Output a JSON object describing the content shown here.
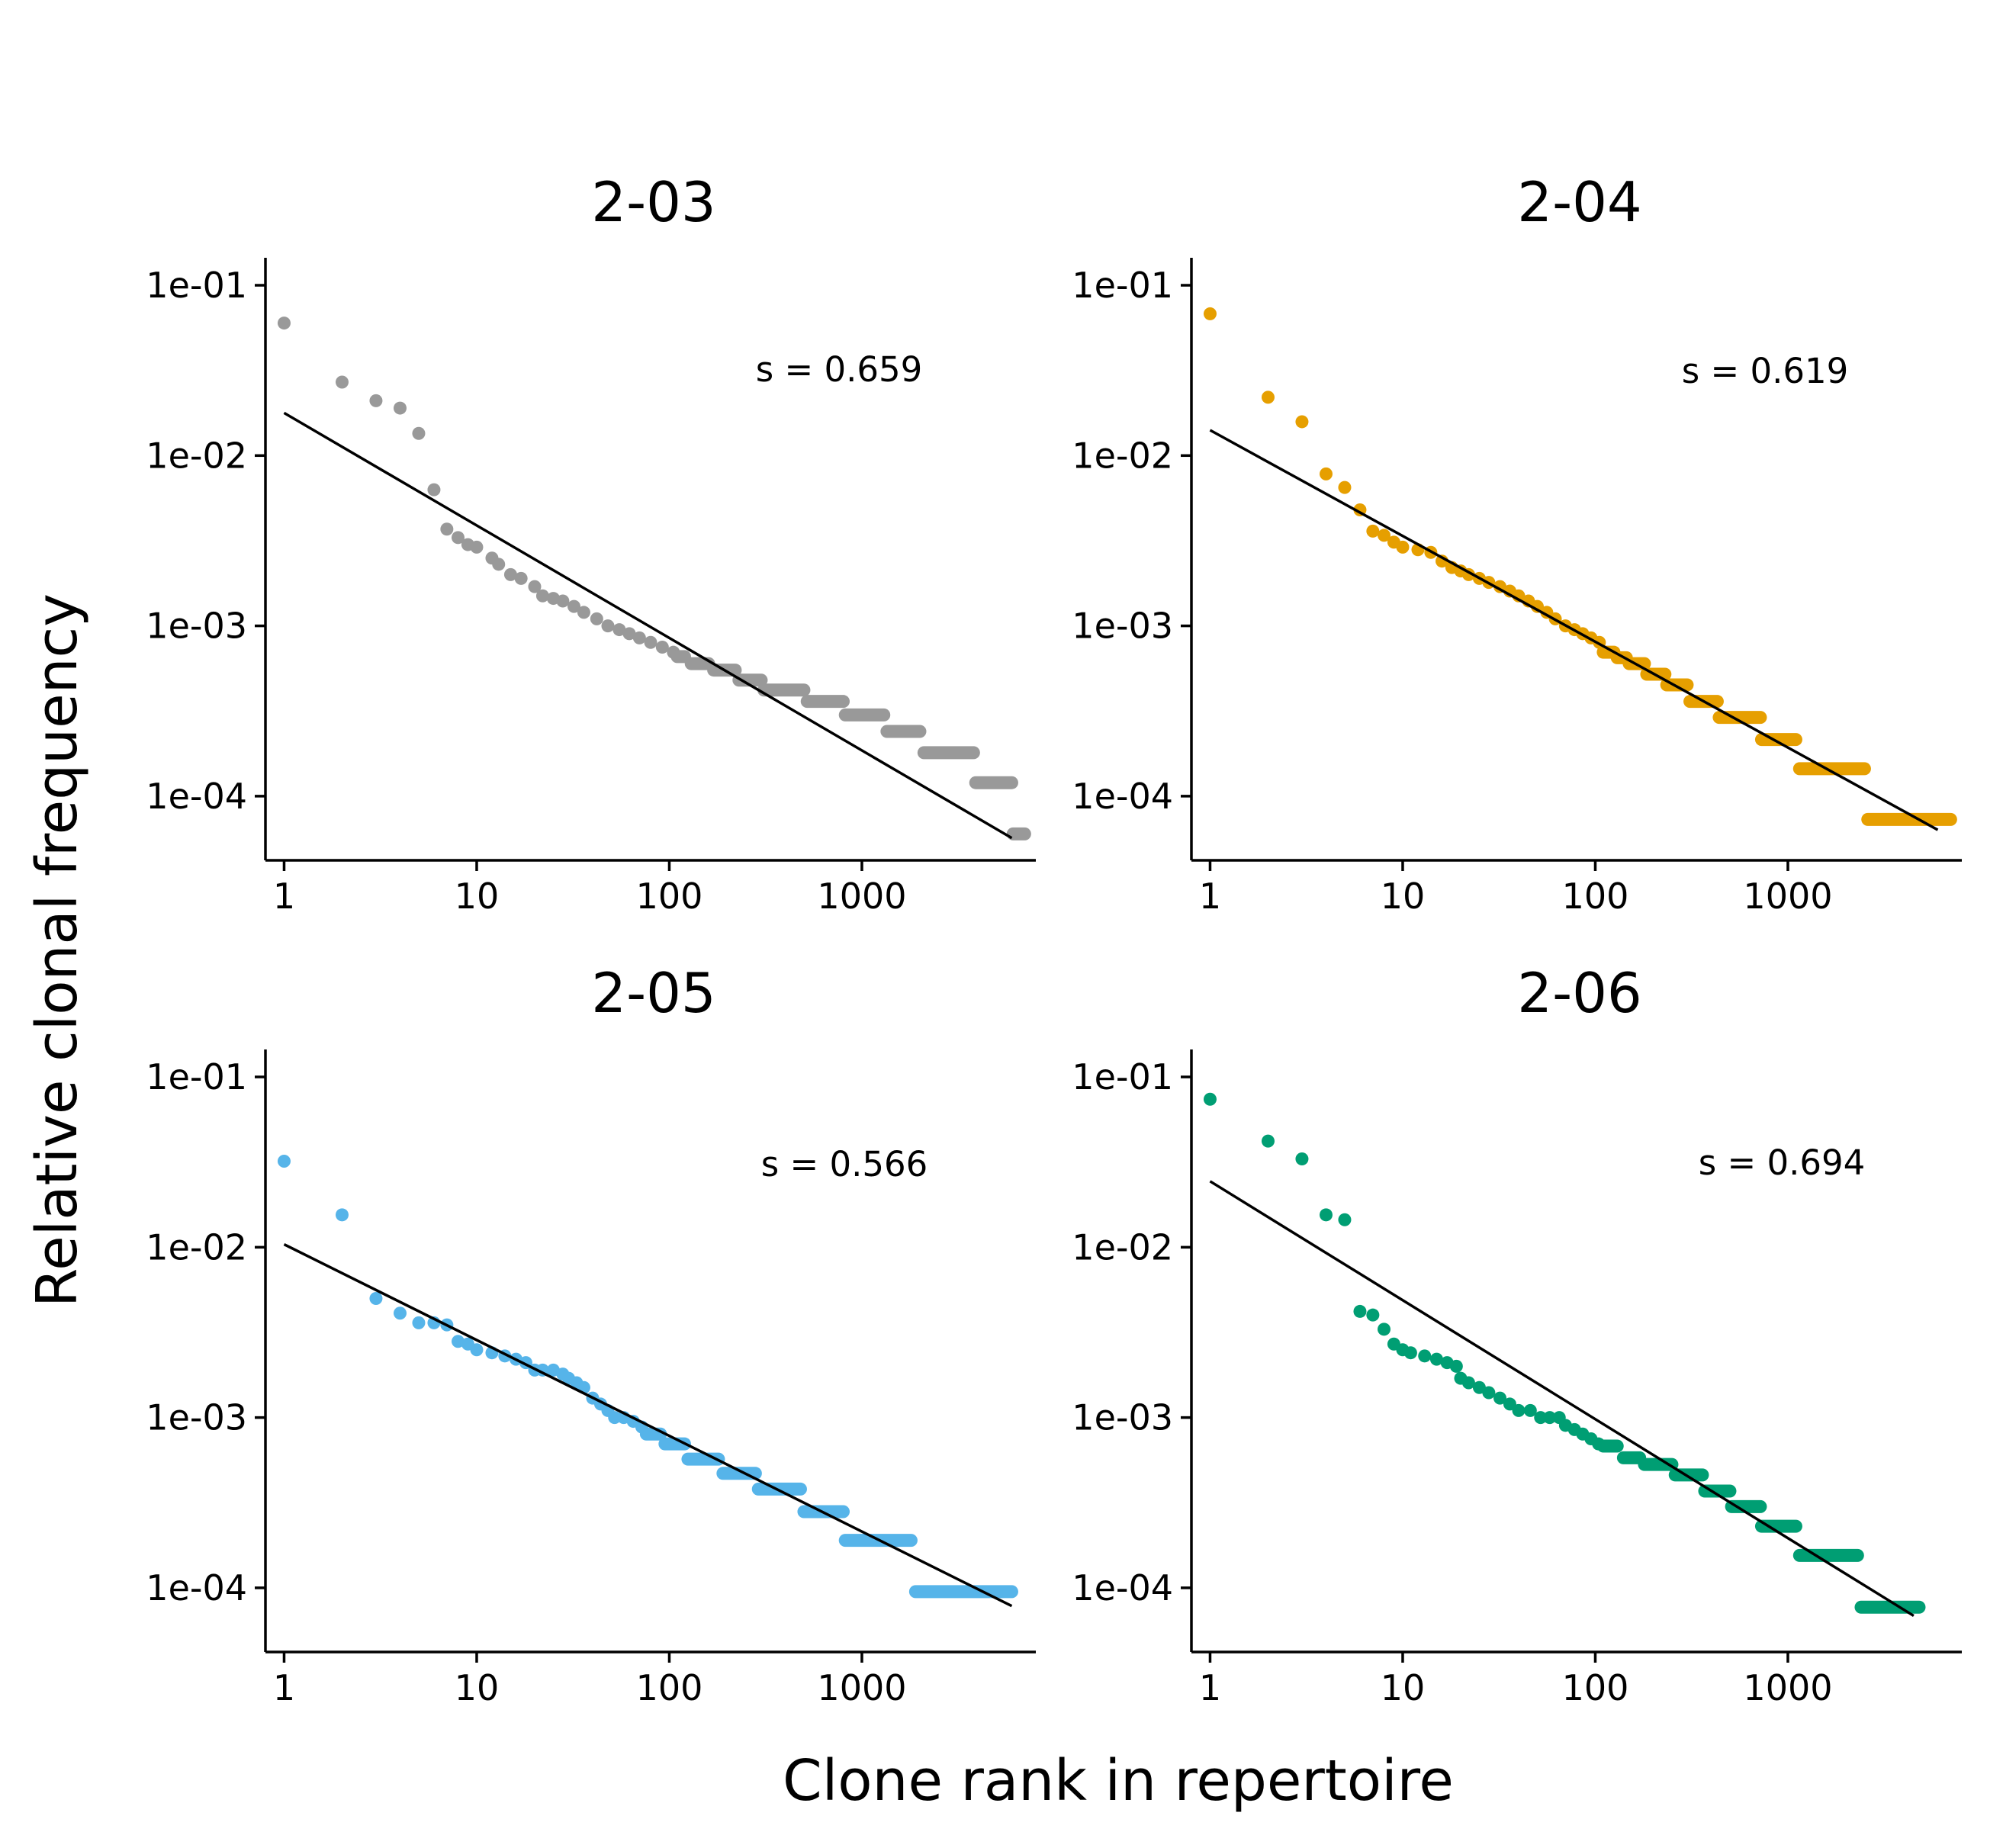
{
  "figure": {
    "xlabel": "Clone rank in repertoire",
    "ylabel": "Relative clonal frequency"
  },
  "chart_data": [
    {
      "type": "scatter",
      "title": "2-03",
      "x_scale": "log",
      "y_scale": "log",
      "xlim": [
        0.8,
        8000
      ],
      "ylim": [
        4.2e-05,
        0.145
      ],
      "x_ticks": [
        1,
        10,
        100,
        1000
      ],
      "x_tick_labels": [
        "1",
        "10",
        "100",
        "1000"
      ],
      "y_ticks": [
        0.0001,
        0.001,
        0.01,
        0.1
      ],
      "y_tick_labels": [
        "1e-04",
        "1e-03",
        "1e-02",
        "1e-01"
      ],
      "color": "#999999",
      "annotation": "s = 0.659",
      "fit_line": {
        "x": [
          1,
          6000
        ],
        "y": [
          0.0178,
          5.68e-05
        ]
      },
      "points": [
        [
          1,
          0.06
        ],
        [
          2,
          0.027
        ],
        [
          3,
          0.021
        ],
        [
          4,
          0.019
        ],
        [
          5,
          0.0135
        ],
        [
          6,
          0.0063
        ],
        [
          7,
          0.0037
        ],
        [
          8,
          0.0033
        ],
        [
          9,
          0.003
        ],
        [
          10,
          0.0029
        ],
        [
          12,
          0.0025
        ],
        [
          13,
          0.0023
        ],
        [
          15,
          0.002
        ],
        [
          17,
          0.0019
        ],
        [
          20,
          0.0017
        ],
        [
          22,
          0.0015
        ],
        [
          25,
          0.00145
        ],
        [
          28,
          0.0014
        ],
        [
          32,
          0.0013
        ],
        [
          36,
          0.0012
        ],
        [
          42,
          0.0011
        ],
        [
          48,
          0.001
        ],
        [
          55,
          0.00095
        ],
        [
          62,
          0.0009
        ],
        [
          70,
          0.00085
        ],
        [
          80,
          0.0008
        ],
        [
          92,
          0.00075
        ],
        [
          105,
          0.0007
        ]
      ],
      "steps": [
        [
          110,
          120,
          0.00066
        ],
        [
          130,
          160,
          0.0006
        ],
        [
          170,
          220,
          0.00055
        ],
        [
          230,
          300,
          0.00048
        ],
        [
          310,
          500,
          0.00042
        ],
        [
          520,
          800,
          0.00036
        ],
        [
          820,
          1300,
          0.0003
        ],
        [
          1350,
          2000,
          0.00024
        ],
        [
          2100,
          3800,
          0.00018
        ],
        [
          3900,
          6000,
          0.00012
        ],
        [
          6100,
          7000,
          6e-05
        ]
      ]
    },
    {
      "type": "scatter",
      "title": "2-04",
      "x_scale": "log",
      "y_scale": "log",
      "xlim": [
        0.8,
        8000
      ],
      "ylim": [
        4.2e-05,
        0.145
      ],
      "x_ticks": [
        1,
        10,
        100,
        1000
      ],
      "x_tick_labels": [
        "1",
        "10",
        "100",
        "1000"
      ],
      "y_ticks": [
        0.0001,
        0.001,
        0.01,
        0.1
      ],
      "y_tick_labels": [
        "1e-04",
        "1e-03",
        "1e-02",
        "1e-01"
      ],
      "color": "#E69F00",
      "annotation": "s = 0.619",
      "fit_line": {
        "x": [
          1,
          6000
        ],
        "y": [
          0.0141,
          6.34e-05
        ]
      },
      "points": [
        [
          1,
          0.068
        ],
        [
          2,
          0.022
        ],
        [
          3,
          0.0158
        ],
        [
          4,
          0.0078
        ],
        [
          5,
          0.0065
        ],
        [
          6,
          0.0048
        ],
        [
          7,
          0.0036
        ],
        [
          8,
          0.0034
        ],
        [
          9,
          0.0031
        ],
        [
          10,
          0.0029
        ],
        [
          12,
          0.0028
        ],
        [
          14,
          0.0027
        ],
        [
          16,
          0.0024
        ],
        [
          18,
          0.0022
        ],
        [
          20,
          0.0021
        ],
        [
          22,
          0.002
        ],
        [
          25,
          0.0019
        ],
        [
          28,
          0.0018
        ],
        [
          32,
          0.0017
        ],
        [
          36,
          0.0016
        ],
        [
          40,
          0.0015
        ],
        [
          45,
          0.0014
        ],
        [
          50,
          0.0013
        ],
        [
          56,
          0.0012
        ],
        [
          62,
          0.0011
        ],
        [
          70,
          0.001
        ],
        [
          78,
          0.00095
        ],
        [
          86,
          0.0009
        ],
        [
          95,
          0.00085
        ],
        [
          105,
          0.0008
        ]
      ],
      "steps": [
        [
          110,
          125,
          0.0007
        ],
        [
          130,
          145,
          0.00065
        ],
        [
          150,
          180,
          0.0006
        ],
        [
          185,
          230,
          0.00052
        ],
        [
          235,
          300,
          0.00045
        ],
        [
          310,
          430,
          0.00036
        ],
        [
          440,
          720,
          0.00029
        ],
        [
          730,
          1100,
          0.000215
        ],
        [
          1150,
          2500,
          0.000145
        ],
        [
          2600,
          7000,
          7.3e-05
        ]
      ]
    },
    {
      "type": "scatter",
      "title": "2-05",
      "x_scale": "log",
      "y_scale": "log",
      "xlim": [
        0.8,
        8000
      ],
      "ylim": [
        4.2e-05,
        0.145
      ],
      "x_ticks": [
        1,
        10,
        100,
        1000
      ],
      "x_tick_labels": [
        "1",
        "10",
        "100",
        "1000"
      ],
      "y_ticks": [
        0.0001,
        0.001,
        0.01,
        0.1
      ],
      "y_tick_labels": [
        "1e-04",
        "1e-03",
        "1e-02",
        "1e-01"
      ],
      "color": "#56B4E9",
      "annotation": "s = 0.566",
      "fit_line": {
        "x": [
          1,
          6000
        ],
        "y": [
          0.0104,
          7.82e-05
        ]
      },
      "points": [
        [
          1,
          0.032
        ],
        [
          2,
          0.0155
        ],
        [
          3,
          0.005
        ],
        [
          4,
          0.0041
        ],
        [
          5,
          0.0036
        ],
        [
          6,
          0.0036
        ],
        [
          7,
          0.0035
        ],
        [
          8,
          0.0028
        ],
        [
          9,
          0.0027
        ],
        [
          10,
          0.0025
        ],
        [
          12,
          0.0024
        ],
        [
          14,
          0.0023
        ],
        [
          16,
          0.0022
        ],
        [
          18,
          0.0021
        ],
        [
          20,
          0.0019
        ],
        [
          22,
          0.0019
        ],
        [
          25,
          0.0019
        ],
        [
          28,
          0.0018
        ],
        [
          30,
          0.0017
        ],
        [
          33,
          0.0016
        ],
        [
          36,
          0.0015
        ],
        [
          40,
          0.0013
        ],
        [
          44,
          0.0012
        ],
        [
          48,
          0.0011
        ],
        [
          52,
          0.001
        ],
        [
          58,
          0.001
        ],
        [
          65,
          0.00095
        ],
        [
          72,
          0.00088
        ]
      ],
      "steps": [
        [
          76,
          90,
          0.0008
        ],
        [
          95,
          120,
          0.0007
        ],
        [
          125,
          180,
          0.00057
        ],
        [
          190,
          280,
          0.00047
        ],
        [
          290,
          480,
          0.00038
        ],
        [
          500,
          800,
          0.00028
        ],
        [
          820,
          1800,
          0.00019
        ],
        [
          1900,
          6000,
          9.5e-05
        ]
      ]
    },
    {
      "type": "scatter",
      "title": "2-06",
      "x_scale": "log",
      "y_scale": "log",
      "xlim": [
        0.8,
        8000
      ],
      "ylim": [
        4.2e-05,
        0.145
      ],
      "x_ticks": [
        1,
        10,
        100,
        1000
      ],
      "x_tick_labels": [
        "1",
        "10",
        "100",
        "1000"
      ],
      "y_ticks": [
        0.0001,
        0.001,
        0.01,
        0.1
      ],
      "y_tick_labels": [
        "1e-04",
        "1e-03",
        "1e-02",
        "1e-01"
      ],
      "color": "#009E73",
      "annotation": "s = 0.694",
      "fit_line": {
        "x": [
          1,
          4500
        ],
        "y": [
          0.0244,
          6.85e-05
        ]
      },
      "points": [
        [
          1,
          0.074
        ],
        [
          2,
          0.042
        ],
        [
          3,
          0.033
        ],
        [
          4,
          0.0155
        ],
        [
          5,
          0.0145
        ],
        [
          6,
          0.0042
        ],
        [
          7,
          0.004
        ],
        [
          8,
          0.0033
        ],
        [
          9,
          0.0027
        ],
        [
          10,
          0.0025
        ],
        [
          11,
          0.0024
        ],
        [
          13,
          0.0023
        ],
        [
          15,
          0.0022
        ],
        [
          17,
          0.0021
        ],
        [
          19,
          0.002
        ],
        [
          20,
          0.0017
        ],
        [
          22,
          0.0016
        ],
        [
          25,
          0.0015
        ],
        [
          28,
          0.0014
        ],
        [
          32,
          0.0013
        ],
        [
          36,
          0.0012
        ],
        [
          40,
          0.0011
        ],
        [
          46,
          0.0011
        ],
        [
          52,
          0.001
        ],
        [
          58,
          0.001
        ],
        [
          65,
          0.001
        ],
        [
          70,
          0.0009
        ],
        [
          78,
          0.00085
        ],
        [
          86,
          0.0008
        ],
        [
          95,
          0.00075
        ],
        [
          104,
          0.0007
        ]
      ],
      "steps": [
        [
          110,
          130,
          0.00068
        ],
        [
          140,
          170,
          0.00058
        ],
        [
          180,
          250,
          0.00053
        ],
        [
          260,
          360,
          0.00046
        ],
        [
          370,
          500,
          0.00037
        ],
        [
          510,
          720,
          0.0003
        ],
        [
          730,
          1100,
          0.00023
        ],
        [
          1150,
          2300,
          0.000155
        ],
        [
          2400,
          4800,
          7.7e-05
        ]
      ]
    }
  ]
}
